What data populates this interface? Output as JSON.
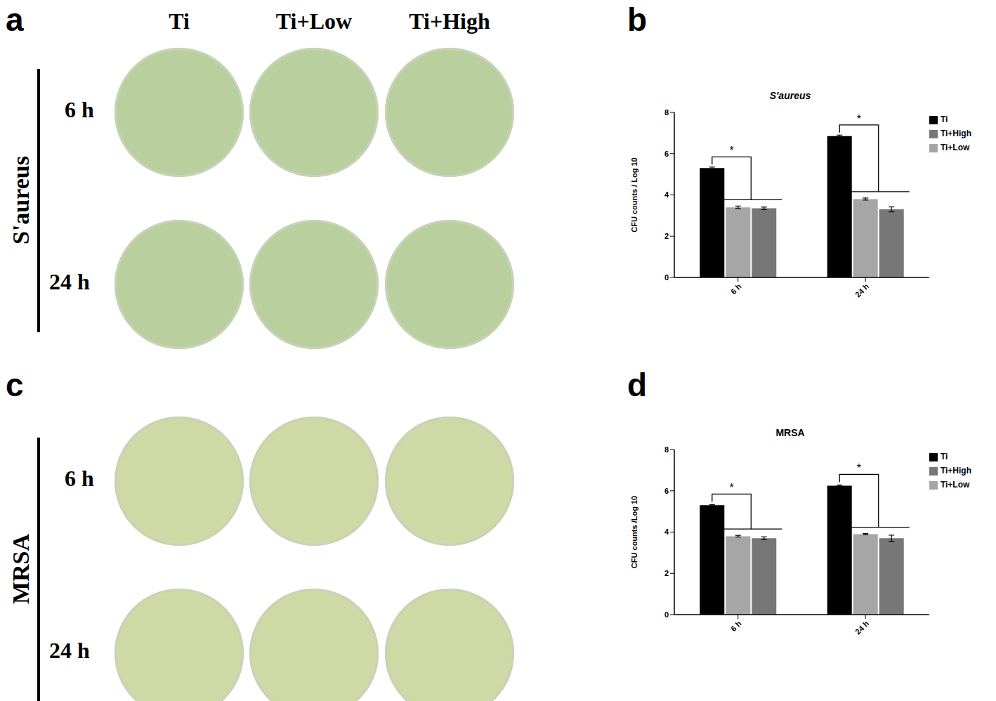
{
  "panel_labels": [
    "a",
    "b",
    "c",
    "d"
  ],
  "columns": [
    "Ti",
    "Ti+Low",
    "Ti+High"
  ],
  "rows": [
    {
      "organism": "S'aureus",
      "times": [
        "6 h",
        "24 h"
      ]
    },
    {
      "organism": "MRSA",
      "times": [
        "6 h",
        "24 h"
      ]
    }
  ],
  "chart_data": [
    {
      "type": "bar",
      "title": "S'aureus",
      "y_label": "CFU counts / Log 10",
      "categories": [
        "6 h",
        "24 h"
      ],
      "series": [
        {
          "name": "Ti",
          "color": "#000000",
          "values": [
            5.3,
            6.85
          ],
          "errors": [
            0.05,
            0.05
          ]
        },
        {
          "name": "Ti+Low",
          "color": "#a6a6a6",
          "values": [
            3.4,
            3.8
          ],
          "errors": [
            0.06,
            0.05
          ]
        },
        {
          "name": "Ti+High",
          "color": "#777777",
          "values": [
            3.35,
            3.3
          ],
          "errors": [
            0.06,
            0.12
          ]
        }
      ],
      "annotations": [
        {
          "category": "6 h",
          "text": "*"
        },
        {
          "category": "24 h",
          "text": "*"
        }
      ],
      "ylim": [
        0,
        8
      ],
      "yticks": [
        0,
        2,
        4,
        6,
        8
      ],
      "legend": "right",
      "grid": false
    },
    {
      "type": "bar",
      "title": "MRSA",
      "y_label": "CFU counts /Log 10",
      "categories": [
        "6 h",
        "24 h"
      ],
      "series": [
        {
          "name": "Ti",
          "color": "#000000",
          "values": [
            5.3,
            6.25
          ],
          "errors": [
            0.03,
            0.03
          ]
        },
        {
          "name": "Ti+Low",
          "color": "#a6a6a6",
          "values": [
            3.8,
            3.9
          ],
          "errors": [
            0.04,
            0.03
          ]
        },
        {
          "name": "Ti+High",
          "color": "#777777",
          "values": [
            3.7,
            3.7
          ],
          "errors": [
            0.07,
            0.15
          ]
        }
      ],
      "annotations": [
        {
          "category": "6 h",
          "text": "*"
        },
        {
          "category": "24 h",
          "text": "*"
        }
      ],
      "ylim": [
        0,
        8
      ],
      "yticks": [
        0,
        2,
        4,
        6,
        8
      ],
      "legend": "right",
      "grid": false
    }
  ]
}
